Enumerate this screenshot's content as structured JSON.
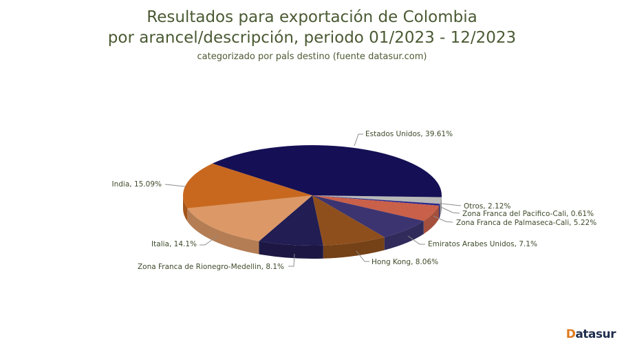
{
  "header": {
    "title_line1": "Resultados para exportación de Colombia",
    "title_line2": "por arancel/descripción, periodo 01/2023 - 12/2023",
    "subtitle": "categorizado por paÍs destino (fuente datasur.com)"
  },
  "logo": {
    "first": "D",
    "rest": "atasur"
  },
  "chart_data": {
    "type": "pie",
    "style": "3d",
    "title": "Resultados para exportación de Colombia por arancel/descripción, periodo 01/2023 - 12/2023",
    "subtitle": "categorizado por paÍs destino (fuente datasur.com)",
    "legend": "none (data labels with leader lines)",
    "slices": [
      {
        "label": "Otros",
        "value": 2.12,
        "color": "#b8b8b8",
        "text": "Otros, 2.12%"
      },
      {
        "label": "Zona Franca del Pacifico-Cali",
        "value": 0.61,
        "color": "#2a2a8a",
        "text": "Zona Franca del Pacifico-Cali, 0.61%"
      },
      {
        "label": "Zona Franca de Palmaseca-Cali",
        "value": 5.22,
        "color": "#c9604a",
        "text": "Zona Franca de Palmaseca-Cali, 5.22%"
      },
      {
        "label": "Emiratos Arabes Unidos",
        "value": 7.1,
        "color": "#3c3470",
        "text": "Emiratos Arabes Unidos, 7.1%"
      },
      {
        "label": "Hong Kong",
        "value": 8.06,
        "color": "#8f4f1c",
        "text": "Hong Kong, 8.06%"
      },
      {
        "label": "Zona Franca de Rionegro-Medellin",
        "value": 8.1,
        "color": "#221d52",
        "text": "Zona Franca de Rionegro-Medellin, 8.1%"
      },
      {
        "label": "Italia",
        "value": 14.1,
        "color": "#dc9866",
        "text": "Italia, 14.1%"
      },
      {
        "label": "India",
        "value": 15.09,
        "color": "#c8681f",
        "text": "India, 15.09%"
      },
      {
        "label": "Estados Unidos",
        "value": 39.61,
        "color": "#151055",
        "text": "Estados Unidos, 39.61%"
      }
    ]
  }
}
